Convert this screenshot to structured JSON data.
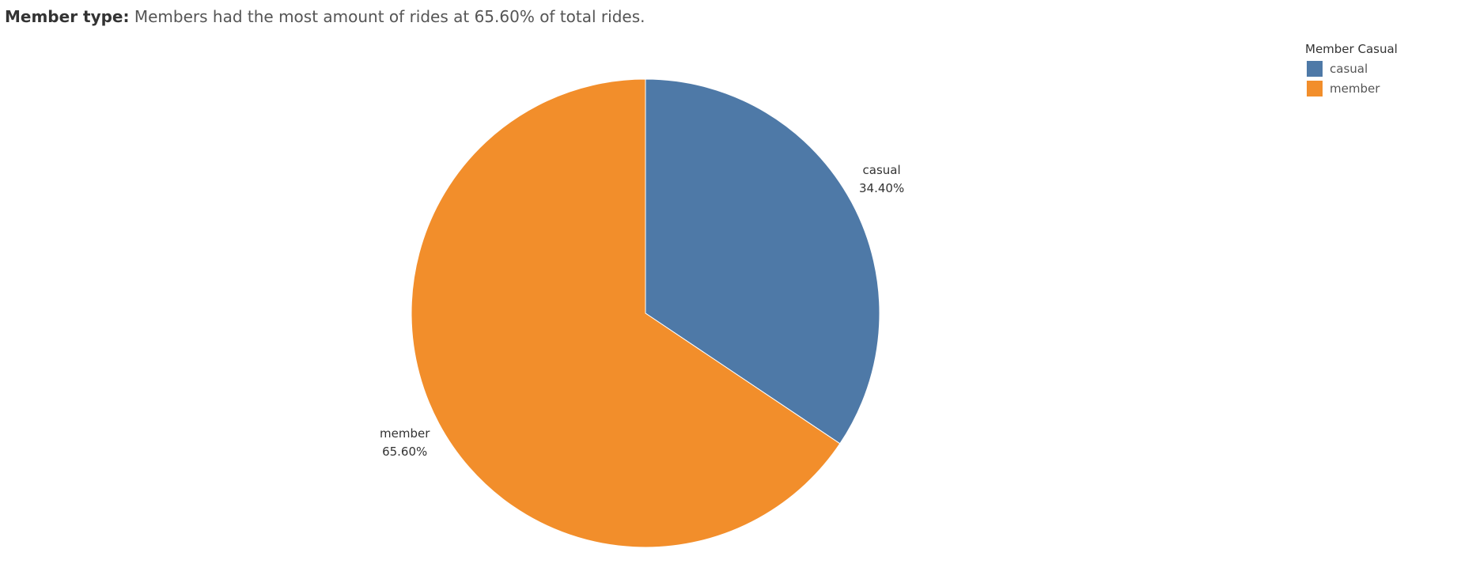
{
  "title": {
    "bold": "Member type:",
    "rest": " Members had the most amount of rides at 65.60% of total rides."
  },
  "legend": {
    "title": "Member Casual",
    "items": [
      {
        "label": "casual",
        "color": "#4e79a7"
      },
      {
        "label": "member",
        "color": "#f28e2b"
      }
    ]
  },
  "chart_data": {
    "type": "pie",
    "title": "Member type: Members had the most amount of rides at 65.60% of total rides.",
    "slices": [
      {
        "name": "casual",
        "value": 34.4,
        "label": "34.40%",
        "color": "#4e79a7"
      },
      {
        "name": "member",
        "value": 65.6,
        "label": "65.60%",
        "color": "#f28e2b"
      }
    ],
    "start": "12 o'clock",
    "direction": "clockwise",
    "legend_placement": "top-right"
  }
}
